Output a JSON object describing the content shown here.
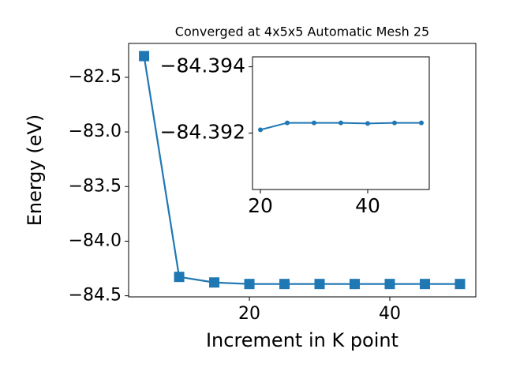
{
  "chart_data": [
    {
      "type": "line",
      "title": "Converged at 4x5x5 Automatic Mesh 25",
      "x_label": "Increment in K point",
      "y_label": "Energy (eV)",
      "x": [
        5,
        10,
        15,
        20,
        25,
        30,
        35,
        40,
        45,
        50
      ],
      "values": [
        -82.306,
        -84.327,
        -84.378,
        -84.392,
        -84.392,
        -84.392,
        -84.392,
        -84.392,
        -84.392,
        -84.392
      ],
      "color": "#1f77b4",
      "marker": "square",
      "xlim": [
        2.8,
        52.25
      ],
      "ylim": [
        -84.51,
        -82.19
      ],
      "xticks": [
        20,
        40
      ],
      "yticks": [
        {
          "value": -84.5,
          "label": "−84.5"
        },
        {
          "value": -84.0,
          "label": "−84.0"
        },
        {
          "value": -83.5,
          "label": "−83.5"
        },
        {
          "value": -83.0,
          "label": "−83.0"
        },
        {
          "value": -82.5,
          "label": "−82.5"
        }
      ]
    },
    {
      "type": "line",
      "x": [
        20,
        25,
        30,
        35,
        40,
        45,
        50
      ],
      "values": [
        -84.3921,
        -84.39231,
        -84.39231,
        -84.39231,
        -84.39229,
        -84.39231,
        -84.39231
      ],
      "color": "#1f77b4",
      "marker": "circle",
      "xlim": [
        18.53,
        51.47
      ],
      "ylim": [
        -84.3903,
        -84.3943
      ],
      "xticks": [
        20,
        40
      ],
      "yticks": [
        {
          "value": -84.394,
          "label": "−84.394"
        },
        {
          "value": -84.392,
          "label": "−84.392"
        }
      ]
    }
  ]
}
